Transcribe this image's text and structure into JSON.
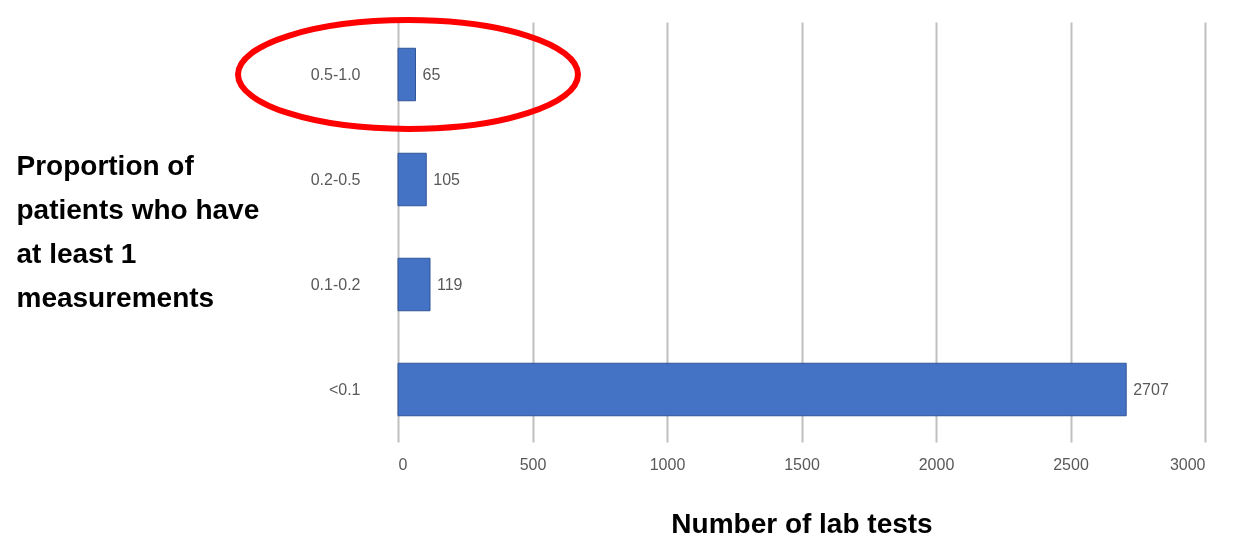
{
  "chart_data": {
    "type": "bar",
    "orientation": "horizontal",
    "xlabel": "Number of lab tests",
    "ylabel": "Proportion of patients who have at least 1 measurements",
    "categories": [
      "0.5-1.0",
      "0.2-0.5",
      "0.1-0.2",
      "<0.1"
    ],
    "values": [
      65,
      105,
      119,
      2707
    ],
    "color": "#4472c4",
    "xlim": [
      0,
      3000
    ],
    "xticks": [
      0,
      500,
      1000,
      1500,
      2000,
      2500,
      3000
    ],
    "grid": "x",
    "data_labels": true
  }
}
